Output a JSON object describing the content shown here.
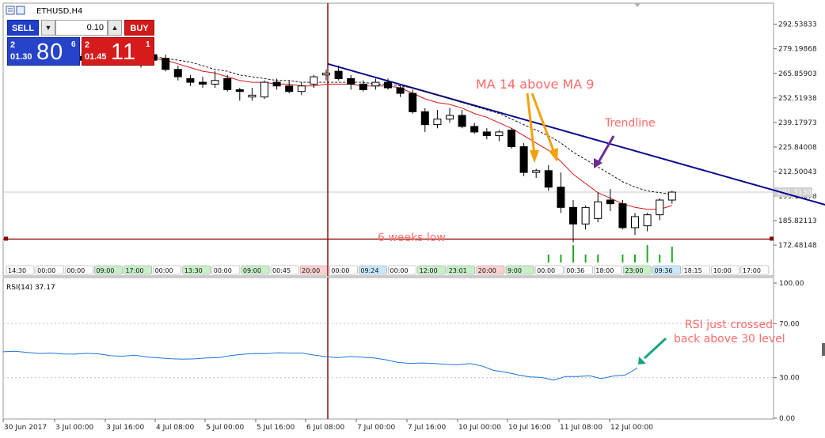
{
  "window": {
    "symbol_title": "ETHUSD,H4"
  },
  "trade_panel": {
    "sell_label": "SELL",
    "buy_label": "BUY",
    "lot_value": "0.10",
    "minus_icon": "triangle-down",
    "plus_icon": "triangle-up",
    "bid": {
      "small_top": "2",
      "small_bottom": "01.30",
      "big": "80",
      "sup": "6"
    },
    "ask": {
      "small_top": "2",
      "small_bottom": "01.45",
      "big": "11",
      "sup": "1"
    }
  },
  "chart_data": [
    {
      "type": "candlestick",
      "title": "ETHUSD,H4",
      "ylim": [
        163.5,
        304
      ],
      "y_ticks": [
        "292.53833",
        "279.19868",
        "265.85903",
        "252.51938",
        "239.17973",
        "225.84008",
        "212.50043",
        "199.16078",
        "185.82113",
        "172.48148"
      ],
      "current_price_label": "201.31301",
      "candles": [
        {
          "o": 275,
          "h": 278,
          "l": 272,
          "c": 274
        },
        {
          "o": 274,
          "h": 277,
          "l": 271,
          "c": 276
        },
        {
          "o": 277,
          "h": 279,
          "l": 272,
          "c": 273
        },
        {
          "o": 272,
          "h": 276,
          "l": 270,
          "c": 275
        },
        {
          "o": 275,
          "h": 278,
          "l": 272,
          "c": 276
        },
        {
          "o": 275,
          "h": 277,
          "l": 271,
          "c": 273
        },
        {
          "o": 273,
          "h": 277,
          "l": 270,
          "c": 275
        },
        {
          "o": 276,
          "h": 279,
          "l": 273,
          "c": 277
        },
        {
          "o": 277,
          "h": 280,
          "l": 273,
          "c": 274
        },
        {
          "o": 274,
          "h": 277,
          "l": 270,
          "c": 272
        },
        {
          "o": 272,
          "h": 276,
          "l": 269,
          "c": 275
        },
        {
          "o": 276,
          "h": 278,
          "l": 272,
          "c": 273
        },
        {
          "o": 274,
          "h": 276,
          "l": 267,
          "c": 268
        },
        {
          "o": 268,
          "h": 270,
          "l": 262,
          "c": 264
        },
        {
          "o": 263,
          "h": 265,
          "l": 259,
          "c": 261
        },
        {
          "o": 261,
          "h": 264,
          "l": 258,
          "c": 260
        },
        {
          "o": 260,
          "h": 267,
          "l": 258,
          "c": 262
        },
        {
          "o": 263,
          "h": 265,
          "l": 256,
          "c": 257
        },
        {
          "o": 257,
          "h": 258,
          "l": 251,
          "c": 256
        },
        {
          "o": 253,
          "h": 258,
          "l": 251,
          "c": 254
        },
        {
          "o": 253,
          "h": 262,
          "l": 252,
          "c": 261
        },
        {
          "o": 261,
          "h": 263,
          "l": 257,
          "c": 259
        },
        {
          "o": 259,
          "h": 262,
          "l": 255,
          "c": 256
        },
        {
          "o": 256,
          "h": 261,
          "l": 254,
          "c": 259
        },
        {
          "o": 260,
          "h": 265,
          "l": 258,
          "c": 264
        },
        {
          "o": 265,
          "h": 268,
          "l": 262,
          "c": 266
        },
        {
          "o": 267,
          "h": 270,
          "l": 262,
          "c": 263
        },
        {
          "o": 263,
          "h": 265,
          "l": 257,
          "c": 260
        },
        {
          "o": 260,
          "h": 262,
          "l": 256,
          "c": 257
        },
        {
          "o": 259,
          "h": 263,
          "l": 257,
          "c": 261
        },
        {
          "o": 261,
          "h": 263,
          "l": 257,
          "c": 258
        },
        {
          "o": 258,
          "h": 260,
          "l": 253,
          "c": 255
        },
        {
          "o": 255,
          "h": 257,
          "l": 244,
          "c": 245
        },
        {
          "o": 245,
          "h": 247,
          "l": 234,
          "c": 238
        },
        {
          "o": 238,
          "h": 246,
          "l": 236,
          "c": 241
        },
        {
          "o": 241,
          "h": 247,
          "l": 239,
          "c": 243
        },
        {
          "o": 243,
          "h": 246,
          "l": 236,
          "c": 237
        },
        {
          "o": 237,
          "h": 239,
          "l": 233,
          "c": 234
        },
        {
          "o": 234,
          "h": 236,
          "l": 230,
          "c": 232
        },
        {
          "o": 232,
          "h": 235,
          "l": 229,
          "c": 234
        },
        {
          "o": 235,
          "h": 236,
          "l": 225,
          "c": 226
        },
        {
          "o": 226,
          "h": 228,
          "l": 210,
          "c": 212
        },
        {
          "o": 212,
          "h": 214,
          "l": 209,
          "c": 213
        },
        {
          "o": 213,
          "h": 216,
          "l": 202,
          "c": 204
        },
        {
          "o": 204,
          "h": 212,
          "l": 190,
          "c": 193
        },
        {
          "o": 193,
          "h": 197,
          "l": 174,
          "c": 184
        },
        {
          "o": 184,
          "h": 194,
          "l": 181,
          "c": 193
        },
        {
          "o": 187,
          "h": 201,
          "l": 185,
          "c": 196
        },
        {
          "o": 197,
          "h": 203,
          "l": 191,
          "c": 195
        },
        {
          "o": 195,
          "h": 197,
          "l": 181,
          "c": 182
        },
        {
          "o": 182,
          "h": 190,
          "l": 178,
          "c": 188
        },
        {
          "o": 183,
          "h": 190,
          "l": 180,
          "c": 189
        },
        {
          "o": 189,
          "h": 198,
          "l": 186,
          "c": 197
        },
        {
          "o": 197,
          "h": 202,
          "l": 195,
          "c": 201.3
        }
      ],
      "ma_red": [
        276,
        276,
        276,
        275,
        275,
        275,
        275,
        275,
        275,
        275,
        275,
        274,
        273,
        271,
        269,
        267,
        266,
        264,
        262,
        261,
        261,
        260,
        260,
        259,
        259,
        260,
        260,
        260,
        259,
        259,
        259,
        258,
        255,
        252,
        250,
        249,
        247,
        244,
        242,
        239,
        236,
        232,
        228,
        224,
        218,
        211,
        206,
        201,
        198,
        195,
        193,
        192,
        192,
        194
      ],
      "ma_dashed": [
        277,
        277,
        277,
        277,
        276,
        276,
        276,
        276,
        276,
        276,
        275,
        275,
        274,
        273,
        272,
        270,
        268,
        267,
        265,
        264,
        263,
        262,
        262,
        261,
        261,
        261,
        261,
        261,
        261,
        260,
        260,
        259,
        258,
        256,
        254,
        252,
        250,
        248,
        246,
        244,
        241,
        238,
        235,
        232,
        228,
        223,
        219,
        215,
        211,
        207,
        204,
        202,
        201,
        200
      ],
      "trendline": {
        "from_candle": 25,
        "from_price": 271,
        "to_candle": 73,
        "to_price": 180
      },
      "horizontal_line_price": 175.8,
      "vertical_line_candle": 25,
      "annotations": {
        "ma_note": "MA 14 above MA 9",
        "trendline_note": "Trendline",
        "low_note": "6 weeks low"
      },
      "time_strip_labels": [
        "14:30",
        "00:00",
        "00:00",
        "09:00",
        "17:00",
        "00:00",
        "13:30",
        "00:00",
        "09:00",
        "00:45",
        "20:00",
        "00:00",
        "09:24",
        "00:00",
        "12:00",
        "23:01",
        "20:00",
        "9:00",
        "00:00",
        "00:36",
        "18:00",
        "23:00",
        "09:36",
        "18:15",
        "10:00",
        "17:00"
      ]
    },
    {
      "type": "line",
      "title": "RSI(14) 37.17",
      "ylim": [
        0,
        100
      ],
      "y_ticks": [
        "100.00",
        "70.00",
        "30.00",
        "0.00"
      ],
      "values": [
        49.2,
        49.6,
        48.7,
        47.9,
        48.2,
        47.5,
        47.4,
        48,
        47.6,
        46.2,
        45.9,
        46.6,
        45.3,
        44.7,
        44,
        43.7,
        43.9,
        44.6,
        44.8,
        46.3,
        47.3,
        47.9,
        47.8,
        48.4,
        48.2,
        48.2,
        46.7,
        45.5,
        44.8,
        45.7,
        45.1,
        44.6,
        43.2,
        41.3,
        40.6,
        40.9,
        40.5,
        39.8,
        39.6,
        40.4,
        38.7,
        35.4,
        34.1,
        32.1,
        30.5,
        30.2,
        28.2,
        30.9,
        30.8,
        31.4,
        29.3,
        31.2,
        32,
        37.17
      ],
      "annotation": [
        "RSI just crossed",
        "back above 30 level"
      ]
    }
  ],
  "x_axis_labels": [
    "30 Jun 2017",
    "3 Jul 00:00",
    "3 Jul 16:00",
    "4 Jul 08:00",
    "5 Jul 00:00",
    "5 Jul 16:00",
    "6 Jul 08:00",
    "7 Jul 00:00",
    "7 Jul 16:00",
    "10 Jul 00:00",
    "10 Jul 16:00",
    "11 Jul 08:00",
    "12 Jul 00:00"
  ],
  "colors": {
    "bull": "#ffffff",
    "bear": "#000000",
    "ma_red": "#d01818",
    "ma_dashed": "#000000",
    "trendline": "#0a0a8c",
    "hline": "#8b0000",
    "vline": "#8b0000",
    "arrow_orange": "#f5a00a",
    "arrow_purple": "#6a2c91",
    "arrow_teal": "#1aa37f",
    "rsi_line": "#1e74d4",
    "annotation_text": "#ff6b6b"
  }
}
